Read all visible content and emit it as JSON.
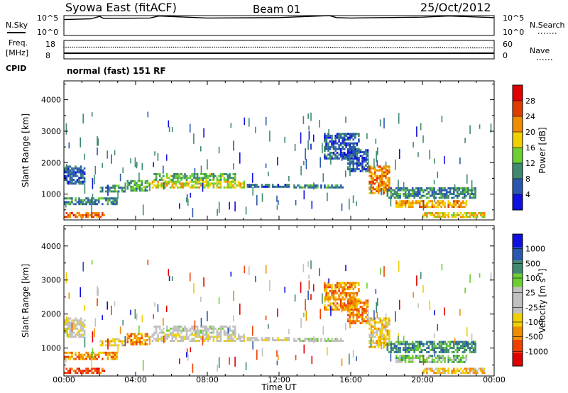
{
  "header": {
    "title": "Syowa East (fitACF)",
    "beam": "Beam 01",
    "date": "25/Oct/2012"
  },
  "top_panels": {
    "nsky_label": "N.Sky",
    "nsearch_label": "N.Search",
    "nsky_ticks": [
      "10^5",
      "10^0"
    ],
    "nsearch_ticks": [
      "10^5",
      "10^0"
    ],
    "freq_label": "Freq.",
    "freq_unit": "[MHz]",
    "freq_ticks": [
      "18",
      "8"
    ],
    "nave_label": "Nave",
    "nave_ticks": [
      "60",
      "0"
    ],
    "cpid_label": "CPID",
    "cpid_text": "normal (fast) 151 RF"
  },
  "colors": {
    "power": [
      "#1010e0",
      "#2858b0",
      "#3e8a6e",
      "#6cd030",
      "#f0d000",
      "#f08c00",
      "#e03c00",
      "#e00000"
    ],
    "velocity": [
      "#e00000",
      "#f04000",
      "#f08c00",
      "#f0d000",
      "#c0c0c0",
      "#c0c0c0",
      "#6cd030",
      "#3e8a6e",
      "#2858b0",
      "#1010e0"
    ]
  },
  "chart_data": [
    {
      "type": "line",
      "name": "N.Sky",
      "x": [
        0,
        1.5,
        2,
        2.2,
        4.8,
        5.3,
        8,
        12,
        14.8,
        15.2,
        16,
        20,
        21.5,
        24
      ],
      "values": [
        4.0,
        4.2,
        4.8,
        4.3,
        4.4,
        4.9,
        4.4,
        4.5,
        5.0,
        4.5,
        4.4,
        4.6,
        4.9,
        4.5
      ],
      "ylim": [
        0,
        5
      ]
    },
    {
      "type": "scatter",
      "name": "Nave",
      "x": [
        0,
        2,
        4,
        6,
        8,
        10,
        12,
        14,
        16,
        18,
        20,
        22,
        24
      ],
      "values": [
        38,
        38,
        38,
        38,
        38,
        38,
        38,
        38,
        37,
        37,
        37,
        36,
        36
      ],
      "ylim": [
        0,
        60
      ]
    },
    {
      "type": "line",
      "name": "Freq",
      "x": [
        0,
        24
      ],
      "values": [
        9,
        9
      ],
      "ylim": [
        8,
        18
      ]
    },
    {
      "type": "heatmap",
      "quantity": "Power",
      "xlabel": "Time UT",
      "ylabel": "Slant Range [km]",
      "colorbar_label": "Power [dB]",
      "colorbar_ticks": [
        "28",
        "24",
        "20",
        "16",
        "12",
        "8",
        "4"
      ],
      "x_ticks": [
        "00:00",
        "04:00",
        "08:00",
        "12:00",
        "16:00",
        "20:00",
        "00:00"
      ],
      "y_ticks": [
        "4000",
        "3000",
        "2000",
        "1000"
      ],
      "xlim": [
        0,
        24
      ],
      "ylim": [
        180,
        4600
      ],
      "clim": [
        0,
        32
      ],
      "regions": [
        {
          "t0": 0.0,
          "t1": 2.3,
          "r0": 240,
          "r1": 420,
          "v": 24
        },
        {
          "t0": 0.0,
          "t1": 1.2,
          "r0": 1300,
          "r1": 1900,
          "v": 7
        },
        {
          "t0": 0.0,
          "t1": 3.0,
          "r0": 650,
          "r1": 850,
          "v": 9
        },
        {
          "t0": 2.0,
          "t1": 3.4,
          "r0": 1050,
          "r1": 1250,
          "v": 10
        },
        {
          "t0": 3.5,
          "t1": 4.6,
          "r0": 1080,
          "r1": 1400,
          "v": 12
        },
        {
          "t0": 4.7,
          "t1": 10.0,
          "r0": 1180,
          "r1": 1380,
          "v": 17
        },
        {
          "t0": 5.0,
          "t1": 9.5,
          "r0": 1420,
          "r1": 1620,
          "v": 13
        },
        {
          "t0": 10.2,
          "t1": 12.5,
          "r0": 1200,
          "r1": 1320,
          "v": 7
        },
        {
          "t0": 12.8,
          "t1": 15.5,
          "r0": 1180,
          "r1": 1300,
          "v": 9
        },
        {
          "t0": 15.8,
          "t1": 17.0,
          "r0": 1700,
          "r1": 2400,
          "v": 7
        },
        {
          "t0": 17.0,
          "t1": 18.2,
          "r0": 1000,
          "r1": 1900,
          "v": 22
        },
        {
          "t0": 18.0,
          "t1": 23.0,
          "r0": 850,
          "r1": 1200,
          "v": 9
        },
        {
          "t0": 18.5,
          "t1": 22.5,
          "r0": 560,
          "r1": 760,
          "v": 21
        },
        {
          "t0": 20.0,
          "t1": 23.5,
          "r0": 240,
          "r1": 400,
          "v": 19
        },
        {
          "t0": 14.5,
          "t1": 16.5,
          "r0": 2100,
          "r1": 2900,
          "v": 6
        }
      ]
    },
    {
      "type": "heatmap",
      "quantity": "Velocity",
      "xlabel": "Time UT",
      "ylabel": "Slant Range [km]",
      "colorbar_label": "Velocity [m s^-1]",
      "colorbar_ticks": [
        "1000",
        "500",
        "100",
        "25",
        "-25",
        "-100",
        "-500",
        "-1000"
      ],
      "x_ticks": [
        "00:00",
        "04:00",
        "08:00",
        "12:00",
        "16:00",
        "20:00",
        "00:00"
      ],
      "y_ticks": [
        "4000",
        "3000",
        "2000",
        "1000"
      ],
      "xlim": [
        0,
        24
      ],
      "ylim": [
        180,
        4600
      ],
      "regions": [
        {
          "t0": 0.0,
          "t1": 2.3,
          "r0": 240,
          "r1": 420,
          "v": 1
        },
        {
          "t0": 0.0,
          "t1": 1.2,
          "r0": 1300,
          "r1": 1900,
          "v": 4
        },
        {
          "t0": 0.0,
          "t1": 3.0,
          "r0": 650,
          "r1": 850,
          "v": 2
        },
        {
          "t0": 2.0,
          "t1": 3.4,
          "r0": 1050,
          "r1": 1250,
          "v": 3
        },
        {
          "t0": 3.5,
          "t1": 4.6,
          "r0": 1080,
          "r1": 1400,
          "v": 2
        },
        {
          "t0": 4.7,
          "t1": 10.0,
          "r0": 1180,
          "r1": 1380,
          "v": 4
        },
        {
          "t0": 5.0,
          "t1": 9.5,
          "r0": 1420,
          "r1": 1620,
          "v": 5
        },
        {
          "t0": 10.2,
          "t1": 12.5,
          "r0": 1200,
          "r1": 1320,
          "v": 4
        },
        {
          "t0": 12.8,
          "t1": 15.5,
          "r0": 1180,
          "r1": 1300,
          "v": 5
        },
        {
          "t0": 15.8,
          "t1": 17.0,
          "r0": 1700,
          "r1": 2400,
          "v": 2
        },
        {
          "t0": 17.0,
          "t1": 18.2,
          "r0": 1000,
          "r1": 1900,
          "v": 3
        },
        {
          "t0": 18.0,
          "t1": 23.0,
          "r0": 850,
          "r1": 1200,
          "v": 7
        },
        {
          "t0": 18.5,
          "t1": 22.5,
          "r0": 560,
          "r1": 760,
          "v": 6
        },
        {
          "t0": 20.0,
          "t1": 23.5,
          "r0": 240,
          "r1": 400,
          "v": 3
        },
        {
          "t0": 14.5,
          "t1": 16.5,
          "r0": 2100,
          "r1": 2900,
          "v": 2
        }
      ]
    }
  ]
}
